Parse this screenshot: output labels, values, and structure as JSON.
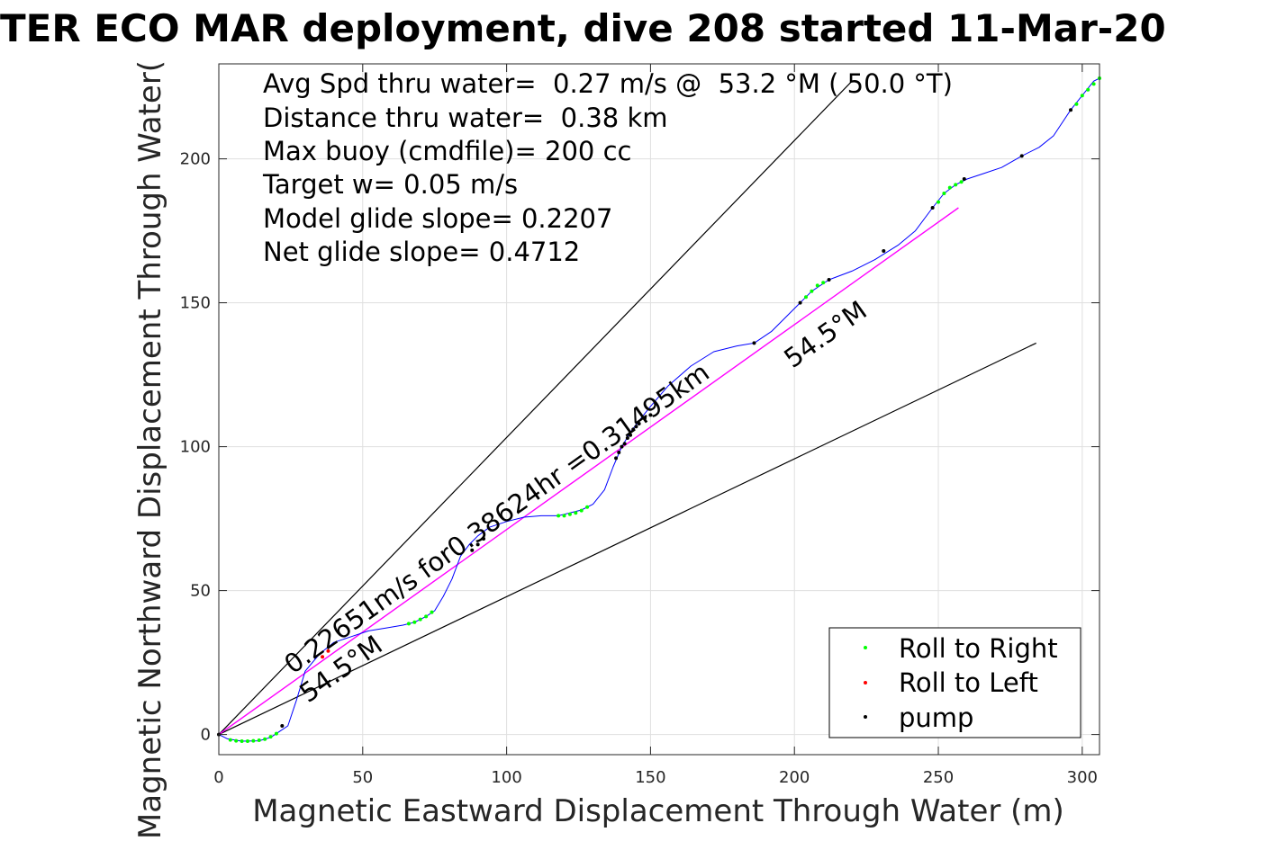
{
  "chart_data": {
    "type": "line",
    "title": "TER ECO MAR deployment, dive 208 started 11-Mar-20",
    "xlabel": "Magnetic Eastward Displacement Through Water (m)",
    "ylabel": "Magnetic Northward Displacement Through Water(",
    "xlim": [
      0,
      306
    ],
    "ylim": [
      -7,
      233
    ],
    "xticks": [
      "0",
      "50",
      "100",
      "150",
      "200",
      "250",
      "300"
    ],
    "yticks": [
      "0",
      "50",
      "100",
      "150",
      "200"
    ],
    "x_tick_values": [
      0,
      50,
      100,
      150,
      200,
      250,
      300
    ],
    "y_tick_values": [
      0,
      50,
      100,
      150,
      200
    ],
    "grid": true,
    "stats": [
      "Avg Spd thru water=  0.27 m/s @  53.2 °M ( 50.0 °T)",
      "Distance thru water=  0.38 km",
      "Max buoy (cmdfile)= 200 cc",
      "Target w= 0.05 m/s",
      "Model glide slope= 0.2207",
      "Net glide slope= 0.4712"
    ],
    "annotations": {
      "speed": "0.22651m/s for0.38624hr =0.31495km",
      "heading_lower": "54.5°M",
      "heading_upper": "54.5°M"
    },
    "legend": {
      "position": "bottom-right",
      "entries": [
        {
          "label": "Roll to Right",
          "color": "#00ff00"
        },
        {
          "label": "Roll to Left",
          "color": "#ff0000"
        },
        {
          "label": "pump",
          "color": "#000000"
        }
      ]
    },
    "track": {
      "name": "",
      "color": "#0000ff",
      "x": [
        0,
        3,
        8,
        14,
        18,
        21,
        24,
        27,
        30,
        35,
        40,
        46,
        52,
        58,
        64,
        68,
        72,
        75,
        78,
        81,
        84,
        87,
        90,
        94,
        100,
        106,
        112,
        118,
        122,
        126,
        130,
        134,
        137,
        140,
        143,
        146,
        150,
        156,
        164,
        172,
        180,
        186,
        192,
        197,
        202,
        206,
        212,
        220,
        228,
        236,
        242,
        248,
        252,
        256,
        260,
        266,
        272,
        279,
        285,
        290,
        296,
        300,
        304,
        306
      ],
      "y": [
        0,
        -1.5,
        -2.3,
        -2.2,
        -1,
        1,
        3,
        12,
        22,
        28,
        32,
        34,
        36,
        37,
        38,
        39,
        41,
        43,
        48,
        54,
        62,
        66,
        69,
        72,
        74,
        75.5,
        76,
        76,
        77,
        78,
        80,
        85,
        93,
        100,
        105,
        109,
        114,
        121,
        128,
        133,
        135,
        136,
        140,
        145,
        150,
        154,
        158,
        161,
        165,
        170,
        175,
        183,
        188,
        191,
        193,
        195,
        197,
        201,
        204,
        208,
        217,
        222,
        227,
        228
      ]
    },
    "roll_right": {
      "x": [
        4,
        6,
        8,
        10,
        12,
        14,
        16,
        18,
        20,
        66,
        68,
        70,
        72,
        74,
        118,
        120,
        122,
        124,
        126,
        128,
        204,
        206,
        208,
        210,
        250,
        252,
        254,
        256,
        258,
        298,
        300,
        302,
        304,
        306
      ],
      "y": [
        -1.9,
        -2.2,
        -2.3,
        -2.3,
        -2.2,
        -2,
        -1.6,
        -0.8,
        0.3,
        38.5,
        39,
        40,
        41,
        42.5,
        76,
        76,
        76.5,
        77,
        77.8,
        79,
        152,
        154,
        156,
        157,
        185,
        188,
        190,
        191,
        192,
        219,
        222,
        224,
        226,
        228
      ]
    },
    "roll_left": {
      "x": [
        36,
        38
      ],
      "y": [
        27,
        29
      ]
    },
    "pump": {
      "x": [
        0,
        22,
        88,
        90,
        92,
        138,
        139,
        140,
        141,
        142,
        143,
        144,
        145,
        146,
        148,
        150,
        186,
        202,
        212,
        231,
        248,
        259,
        279,
        296
      ],
      "y": [
        0,
        3,
        64,
        66,
        68,
        96,
        98,
        100,
        101,
        103,
        104,
        106,
        107,
        108,
        110,
        111,
        136,
        150,
        158,
        168,
        183,
        193,
        201,
        217
      ]
    },
    "net_line": {
      "color": "#ff00ff",
      "x": [
        0,
        257
      ],
      "y": [
        0,
        183
      ]
    },
    "bound_upper": {
      "color": "#000000",
      "x": [
        0,
        220
      ],
      "y": [
        0,
        227
      ]
    },
    "bound_lower": {
      "color": "#000000",
      "x": [
        0,
        284
      ],
      "y": [
        0,
        136
      ]
    }
  }
}
